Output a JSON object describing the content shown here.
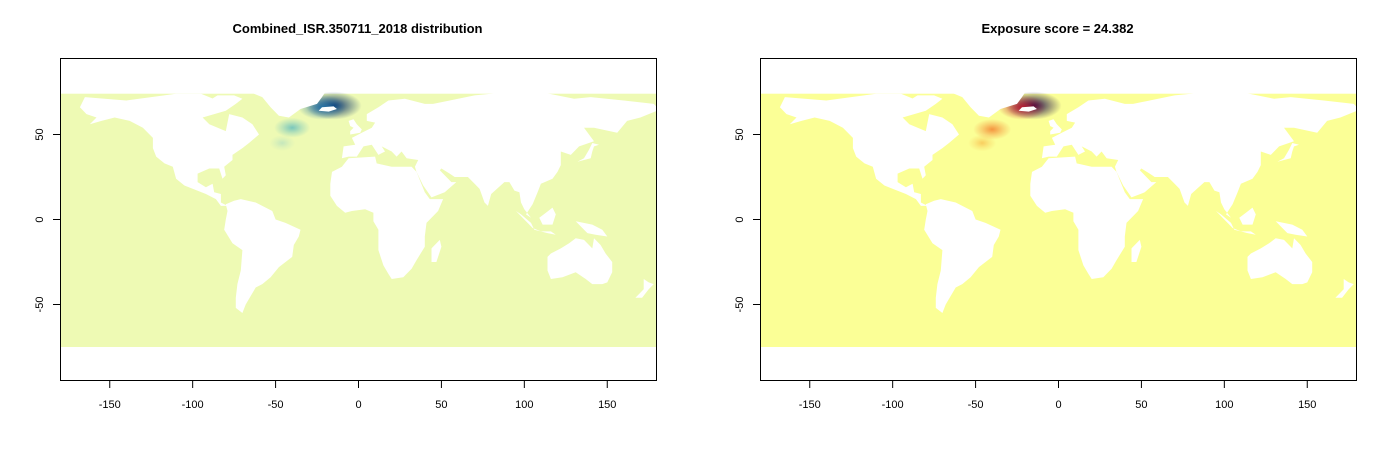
{
  "chart_data": [
    {
      "type": "heatmap",
      "title": "Combined_ISR.350711_2018 distribution",
      "xlabel": "",
      "ylabel": "",
      "xlim": [
        -180,
        180
      ],
      "ylim": [
        -95,
        95
      ],
      "x_ticks": [
        -150,
        -100,
        -50,
        0,
        50,
        100,
        150
      ],
      "y_ticks": [
        -50,
        0,
        50
      ],
      "ocean_color": "#EEFAB4",
      "land_color": "#FFFFFF",
      "data_extent_lat": [
        -75,
        74
      ],
      "hotspots": [
        {
          "lon": -15,
          "lat": 67,
          "intensity": 1.0,
          "color": "#08306B"
        },
        {
          "lon": -22,
          "lat": 66,
          "intensity": 0.8,
          "color": "#1D6FA8"
        },
        {
          "lon": -40,
          "lat": 54,
          "intensity": 0.5,
          "color": "#41AEC0"
        },
        {
          "lon": -46,
          "lat": 45,
          "intensity": 0.25,
          "color": "#9ED5C4"
        }
      ]
    },
    {
      "type": "heatmap",
      "title": "Exposure score = 24.382",
      "xlabel": "",
      "ylabel": "",
      "xlim": [
        -180,
        180
      ],
      "ylim": [
        -95,
        95
      ],
      "x_ticks": [
        -150,
        -100,
        -50,
        0,
        50,
        100,
        150
      ],
      "y_ticks": [
        -50,
        0,
        50
      ],
      "ocean_color": "#FBFF96",
      "land_color": "#FFFFFF",
      "data_extent_lat": [
        -75,
        74
      ],
      "hotspots": [
        {
          "lon": -15,
          "lat": 67,
          "intensity": 1.0,
          "color": "#1A0A4A"
        },
        {
          "lon": -22,
          "lat": 66,
          "intensity": 0.8,
          "color": "#C0102A"
        },
        {
          "lon": -40,
          "lat": 53,
          "intensity": 0.55,
          "color": "#F26A1B"
        },
        {
          "lon": -46,
          "lat": 45,
          "intensity": 0.3,
          "color": "#F7A531"
        }
      ]
    }
  ]
}
